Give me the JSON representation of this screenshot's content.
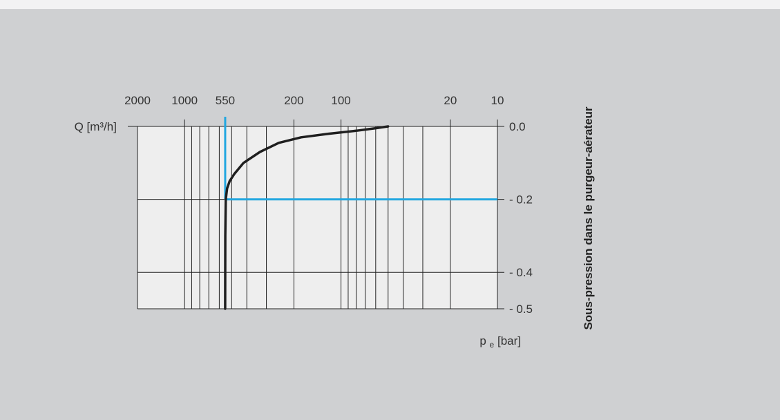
{
  "colors": {
    "background": "#cfd0d2",
    "page": "#f2f2f3",
    "plot_area": "#eeeeee",
    "grid": "#222222",
    "curve": "#1f1f1f",
    "highlight": "#22a7e0"
  },
  "chart_data": {
    "type": "line",
    "title": "",
    "ylabel_left": "Q [m³/h]",
    "ylabel_right": "Sous-pression dans le purgeur-aérateur",
    "xlabel": "pe [bar]",
    "xlabel_parts": {
      "main": "p",
      "sub": "e",
      "rest": " [bar]"
    },
    "x_axis": {
      "scale": "log",
      "reversed": true,
      "range": [
        10,
        2000
      ],
      "position": "top",
      "ticks": [
        {
          "value": 2000,
          "label": "2000",
          "highlight": false
        },
        {
          "value": 1000,
          "label": "1000",
          "highlight": false
        },
        {
          "value": 550,
          "label": "550",
          "highlight": true
        },
        {
          "value": 200,
          "label": "200",
          "highlight": false
        },
        {
          "value": 100,
          "label": "100",
          "highlight": false
        },
        {
          "value": 20,
          "label": "20",
          "highlight": false
        },
        {
          "value": 10,
          "label": "10",
          "highlight": false
        }
      ],
      "minor_gridlines": [
        900,
        800,
        700,
        600,
        500,
        400,
        300,
        90,
        80,
        70,
        60,
        50,
        40,
        30
      ]
    },
    "y_axis": {
      "range": [
        -0.5,
        0.0
      ],
      "position": "right",
      "ticks": [
        {
          "value": 0.0,
          "label": "0.0"
        },
        {
          "value": -0.2,
          "label": "- 0.2"
        },
        {
          "value": -0.4,
          "label": "- 0.4"
        },
        {
          "value": -0.5,
          "label": "- 0.5"
        }
      ]
    },
    "grid": true,
    "series": [
      {
        "x": [
          550,
          549,
          545,
          535,
          515,
          480,
          420,
          330,
          250,
          180,
          120,
          80,
          60,
          50
        ],
        "y": [
          -0.5,
          -0.3,
          -0.2,
          -0.17,
          -0.15,
          -0.13,
          -0.1,
          -0.07,
          -0.045,
          -0.03,
          -0.02,
          -0.012,
          -0.005,
          0.0
        ]
      }
    ],
    "annotation": {
      "x_value": 550,
      "y_value": -0.2
    }
  }
}
